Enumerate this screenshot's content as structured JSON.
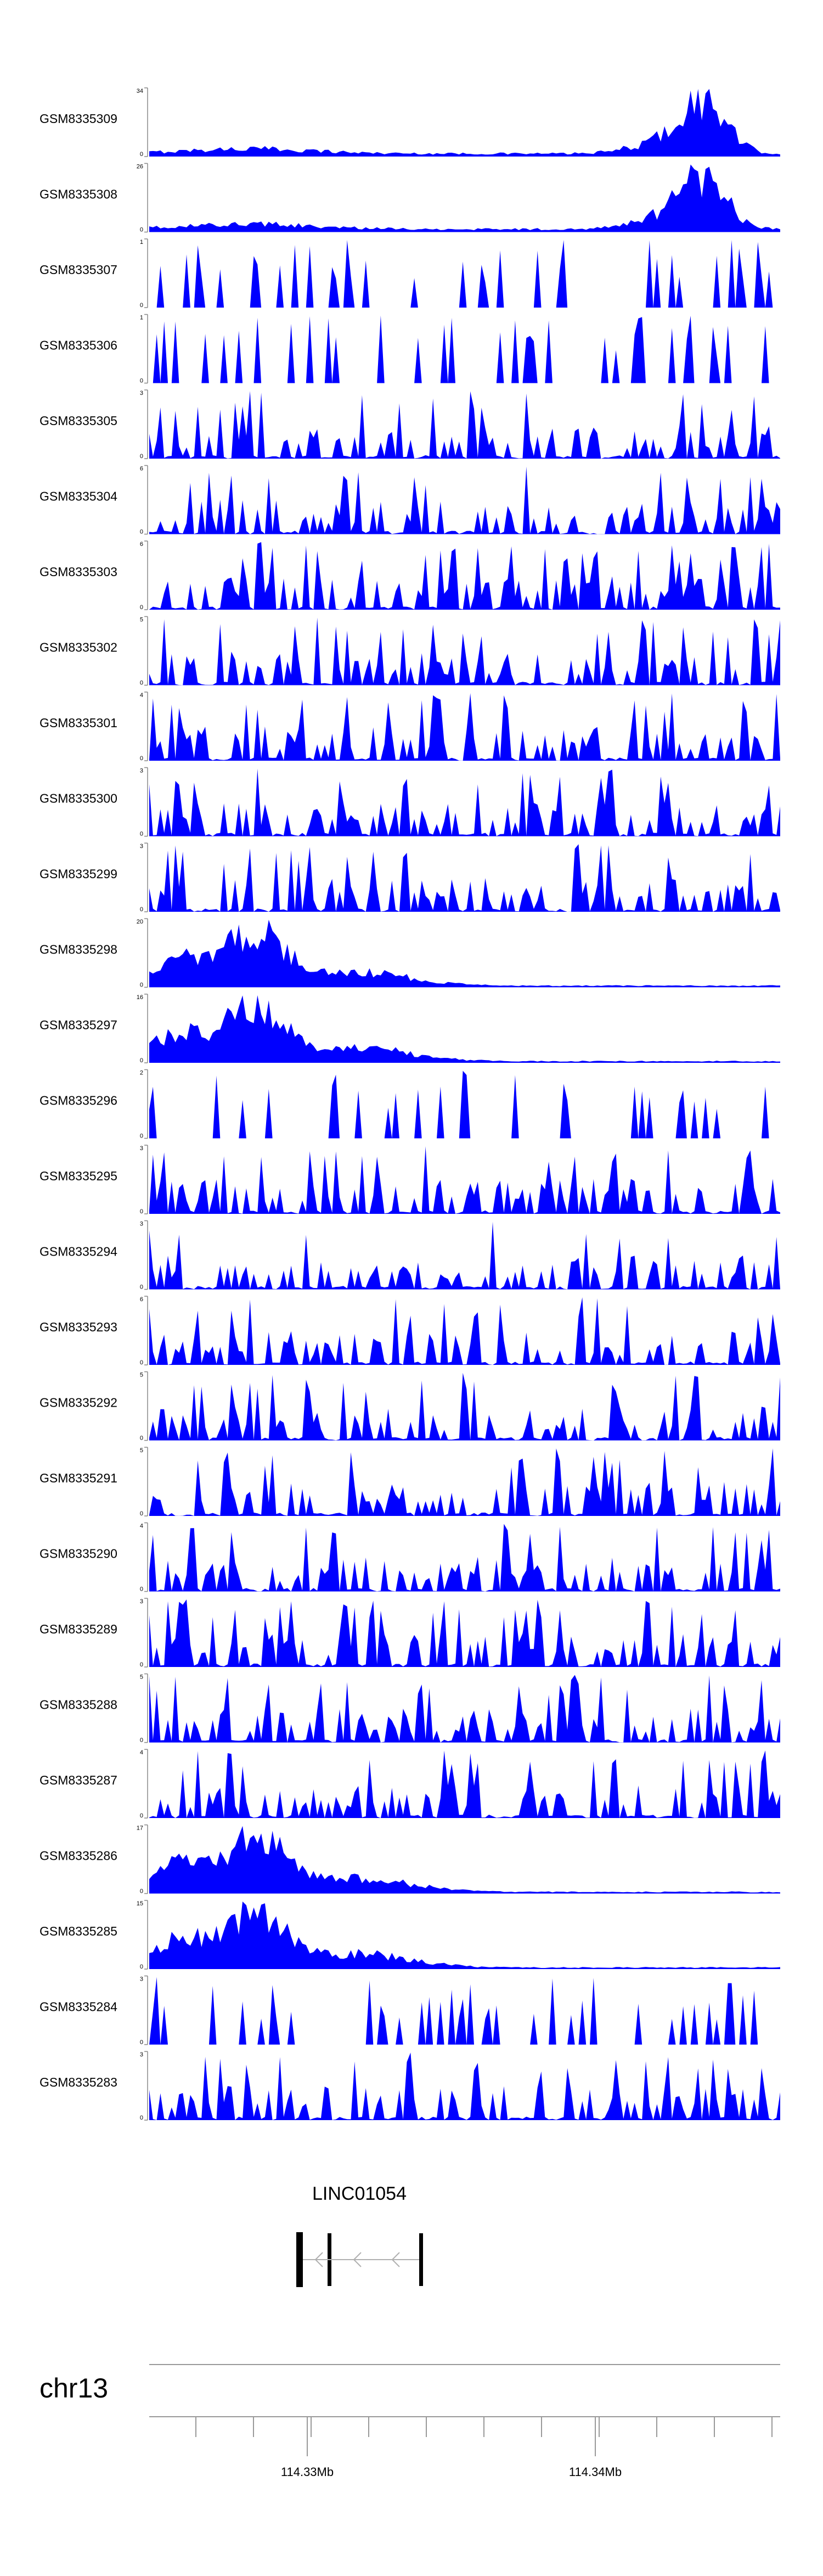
{
  "chart_data": {
    "type": "area",
    "color": "#0000ff",
    "genome": {
      "chromosome": "chr13",
      "gene": {
        "name": "LINC01054",
        "strand": "-"
      },
      "axis_labels": [
        "114.33Mb",
        "114.34Mb"
      ]
    },
    "tracks": [
      {
        "name": "GSM8335309",
        "ymax": 34,
        "profile": "late_peak"
      },
      {
        "name": "GSM8335308",
        "ymax": 26,
        "profile": "late_peak"
      },
      {
        "name": "GSM8335307",
        "ymax": 1,
        "profile": "sparse"
      },
      {
        "name": "GSM8335306",
        "ymax": 1,
        "profile": "sparse"
      },
      {
        "name": "GSM8335305",
        "ymax": 3,
        "profile": "spiky"
      },
      {
        "name": "GSM8335304",
        "ymax": 6,
        "profile": "spiky"
      },
      {
        "name": "GSM8335303",
        "ymax": 6,
        "profile": "spiky"
      },
      {
        "name": "GSM8335302",
        "ymax": 5,
        "profile": "spiky"
      },
      {
        "name": "GSM8335301",
        "ymax": 4,
        "profile": "spiky"
      },
      {
        "name": "GSM8335300",
        "ymax": 3,
        "profile": "spiky"
      },
      {
        "name": "GSM8335299",
        "ymax": 3,
        "profile": "spiky"
      },
      {
        "name": "GSM8335298",
        "ymax": 20,
        "profile": "early_peak"
      },
      {
        "name": "GSM8335297",
        "ymax": 16,
        "profile": "early_peak"
      },
      {
        "name": "GSM8335296",
        "ymax": 2,
        "profile": "sparse"
      },
      {
        "name": "GSM8335295",
        "ymax": 3,
        "profile": "spiky"
      },
      {
        "name": "GSM8335294",
        "ymax": 3,
        "profile": "spiky"
      },
      {
        "name": "GSM8335293",
        "ymax": 6,
        "profile": "spiky"
      },
      {
        "name": "GSM8335292",
        "ymax": 5,
        "profile": "spiky"
      },
      {
        "name": "GSM8335291",
        "ymax": 5,
        "profile": "spiky"
      },
      {
        "name": "GSM8335290",
        "ymax": 4,
        "profile": "spiky"
      },
      {
        "name": "GSM8335289",
        "ymax": 3,
        "profile": "spiky"
      },
      {
        "name": "GSM8335288",
        "ymax": 5,
        "profile": "spiky"
      },
      {
        "name": "GSM8335287",
        "ymax": 4,
        "profile": "spiky"
      },
      {
        "name": "GSM8335286",
        "ymax": 17,
        "profile": "early_peak"
      },
      {
        "name": "GSM8335285",
        "ymax": 15,
        "profile": "early_peak"
      },
      {
        "name": "GSM8335284",
        "ymax": 3,
        "profile": "sparse"
      },
      {
        "name": "GSM8335283",
        "ymax": 3,
        "profile": "spiky"
      }
    ]
  }
}
